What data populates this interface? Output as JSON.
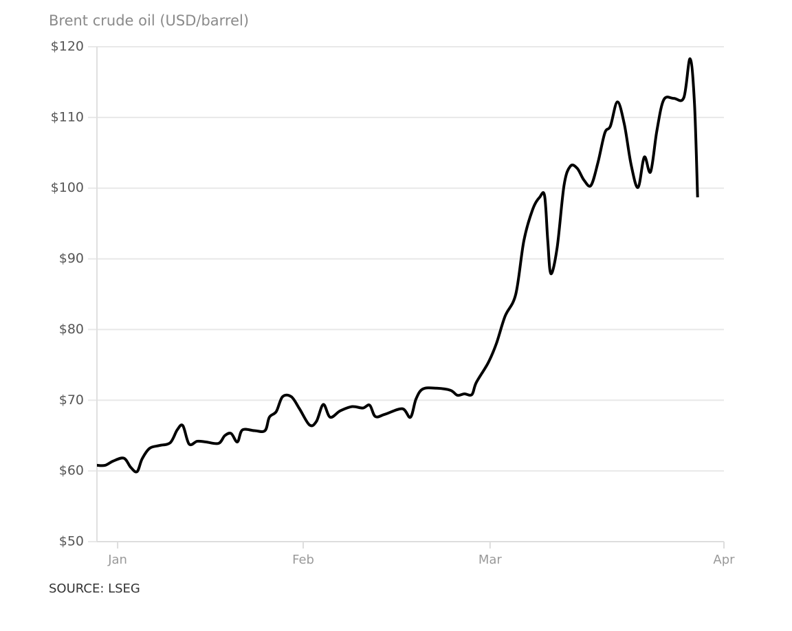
{
  "chart_data": {
    "type": "line",
    "title": "Brent crude oil (USD/barrel)",
    "source": "SOURCE: LSEG",
    "x": [
      0,
      1.3,
      2.6,
      4.3,
      5.4,
      6.4,
      7.2,
      8.4,
      10.0,
      11.7,
      12.8,
      13.7,
      14.7,
      16.0,
      17.4,
      19.4,
      20.4,
      21.4,
      22.4,
      23.2,
      25.1,
      26.8,
      27.5,
      28.6,
      29.6,
      31.0,
      32.3,
      33.9,
      35.0,
      36.1,
      37.2,
      38.8,
      40.7,
      42.4,
      43.5,
      44.4,
      45.9,
      48.7,
      50.0,
      50.9,
      52.0,
      54.2,
      56.4,
      57.5,
      58.6,
      59.8,
      60.5,
      62.4,
      63.7,
      65.1,
      66.8,
      68.1,
      69.5,
      70.6,
      71.4,
      71.9,
      72.4,
      73.4,
      74.5,
      75.5,
      76.6,
      77.7,
      78.8,
      79.9,
      81.0,
      81.9,
      83.0,
      84.1,
      85.2,
      86.3,
      87.3,
      88.3,
      89.3,
      90.4,
      92.0,
      93.6,
      94.6,
      95.3,
      95.8
    ],
    "series": [
      {
        "color": "#000000",
        "values": [
          60.8,
          60.8,
          61.4,
          61.8,
          60.5,
          59.9,
          61.7,
          63.2,
          63.6,
          64.0,
          65.8,
          66.4,
          63.8,
          64.2,
          64.1,
          63.9,
          65.0,
          65.3,
          64.1,
          65.8,
          65.7,
          65.7,
          67.6,
          68.4,
          70.5,
          70.5,
          68.8,
          66.5,
          67.0,
          69.4,
          67.6,
          68.5,
          69.1,
          68.9,
          69.3,
          67.7,
          68.0,
          68.8,
          67.6,
          70.2,
          71.6,
          71.7,
          71.4,
          70.7,
          70.9,
          70.8,
          72.5,
          75.3,
          78.0,
          81.9,
          85.0,
          92.6,
          97.0,
          98.7,
          98.9,
          92.6,
          87.9,
          91.6,
          100.4,
          103.1,
          102.8,
          101.1,
          100.4,
          103.6,
          107.8,
          108.8,
          112.2,
          109.1,
          103.3,
          100.1,
          104.4,
          102.3,
          108.1,
          112.5,
          112.7,
          112.8,
          118.3,
          112.0,
          98.7
        ]
      }
    ],
    "xlim": [
      0,
      100
    ],
    "xticks": [
      {
        "value": 3.3,
        "label": "Jan"
      },
      {
        "value": 32.9,
        "label": "Feb"
      },
      {
        "value": 62.7,
        "label": "Mar"
      },
      {
        "value": 100,
        "label": "Apr"
      }
    ],
    "ylim": [
      50,
      120
    ],
    "yticks": [
      {
        "value": 50,
        "label": "$50"
      },
      {
        "value": 60,
        "label": "$60"
      },
      {
        "value": 70,
        "label": "$70"
      },
      {
        "value": 80,
        "label": "$80"
      },
      {
        "value": 90,
        "label": "$90"
      },
      {
        "value": 100,
        "label": "$100"
      },
      {
        "value": 110,
        "label": "$110"
      },
      {
        "value": 120,
        "label": "$120"
      }
    ],
    "grid": true
  }
}
